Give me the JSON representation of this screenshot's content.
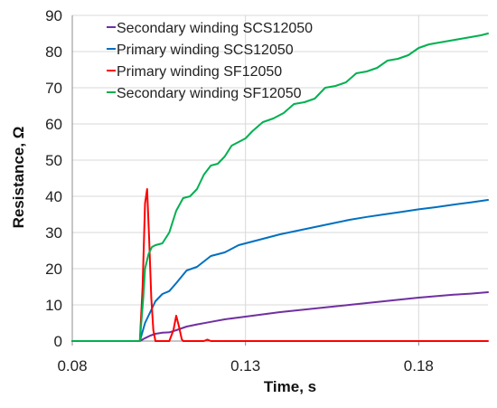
{
  "chart_data": {
    "type": "line",
    "xlabel": "Time, s",
    "ylabel": "Resistance, Ω",
    "xlim": [
      0.08,
      0.2
    ],
    "ylim": [
      0,
      90
    ],
    "xticks": [
      0.08,
      0.13,
      0.18
    ],
    "xtick_labels": [
      "0.08",
      "0.13",
      "0.18"
    ],
    "yticks": [
      0,
      10,
      20,
      30,
      40,
      50,
      60,
      70,
      80,
      90
    ],
    "ytick_labels": [
      "0",
      "10",
      "20",
      "30",
      "40",
      "50",
      "60",
      "70",
      "80",
      "90"
    ],
    "grid": true,
    "legend_position": "top-left",
    "series": [
      {
        "name": "Secondary winding SCS12050",
        "color": "#7030a0",
        "x": [
          0.08,
          0.0995,
          0.101,
          0.1025,
          0.104,
          0.106,
          0.108,
          0.11,
          0.113,
          0.116,
          0.12,
          0.124,
          0.128,
          0.132,
          0.136,
          0.14,
          0.145,
          0.15,
          0.155,
          0.16,
          0.165,
          0.17,
          0.175,
          0.18,
          0.185,
          0.19,
          0.195,
          0.2
        ],
        "y": [
          0,
          0,
          0.8,
          1.5,
          2.0,
          2.3,
          2.4,
          3.0,
          4.0,
          4.6,
          5.3,
          6.0,
          6.5,
          7.0,
          7.5,
          8.0,
          8.5,
          9.0,
          9.5,
          10.0,
          10.5,
          11.0,
          11.5,
          12.0,
          12.4,
          12.8,
          13.1,
          13.5
        ]
      },
      {
        "name": "Primary winding SCS12050",
        "color": "#0070c0",
        "x": [
          0.08,
          0.0995,
          0.101,
          0.1025,
          0.104,
          0.106,
          0.108,
          0.11,
          0.113,
          0.116,
          0.12,
          0.124,
          0.128,
          0.132,
          0.136,
          0.14,
          0.145,
          0.15,
          0.155,
          0.16,
          0.165,
          0.17,
          0.175,
          0.18,
          0.185,
          0.19,
          0.195,
          0.2
        ],
        "y": [
          0,
          0,
          5.0,
          8.0,
          11.0,
          13.0,
          13.8,
          16.0,
          19.5,
          20.5,
          23.5,
          24.5,
          26.5,
          27.5,
          28.5,
          29.5,
          30.5,
          31.5,
          32.5,
          33.5,
          34.3,
          35.0,
          35.7,
          36.4,
          37.0,
          37.7,
          38.3,
          39.0
        ]
      },
      {
        "name": "Primary winding SF12050",
        "color": "#ff0000",
        "x": [
          0.08,
          0.0995,
          0.1003,
          0.101,
          0.1016,
          0.1022,
          0.1028,
          0.1034,
          0.104,
          0.108,
          0.1092,
          0.11,
          0.1108,
          0.1116,
          0.112,
          0.118,
          0.119,
          0.12,
          0.2
        ],
        "y": [
          0,
          0,
          15,
          38,
          42,
          28,
          12,
          3,
          0,
          0,
          3,
          7,
          4,
          0.5,
          0,
          0,
          0.4,
          0,
          0
        ]
      },
      {
        "name": "Secondary winding SF12050",
        "color": "#00b050",
        "x": [
          0.08,
          0.0995,
          0.1005,
          0.101,
          0.102,
          0.103,
          0.104,
          0.106,
          0.108,
          0.11,
          0.112,
          0.114,
          0.116,
          0.118,
          0.12,
          0.122,
          0.124,
          0.126,
          0.128,
          0.13,
          0.132,
          0.135,
          0.138,
          0.141,
          0.144,
          0.147,
          0.15,
          0.153,
          0.156,
          0.159,
          0.162,
          0.165,
          0.168,
          0.171,
          0.174,
          0.177,
          0.18,
          0.183,
          0.186,
          0.189,
          0.192,
          0.195,
          0.198,
          0.2
        ],
        "y": [
          0,
          0,
          12,
          20,
          24,
          26,
          26.5,
          27,
          30,
          36,
          39.5,
          40,
          42,
          46,
          48.5,
          49,
          51,
          54,
          55,
          56,
          58,
          60.5,
          61.5,
          63,
          65.5,
          66,
          67,
          70,
          70.5,
          71.5,
          74,
          74.5,
          75.5,
          77.5,
          78,
          79,
          81,
          82,
          82.5,
          83,
          83.5,
          84,
          84.5,
          85
        ]
      }
    ]
  }
}
